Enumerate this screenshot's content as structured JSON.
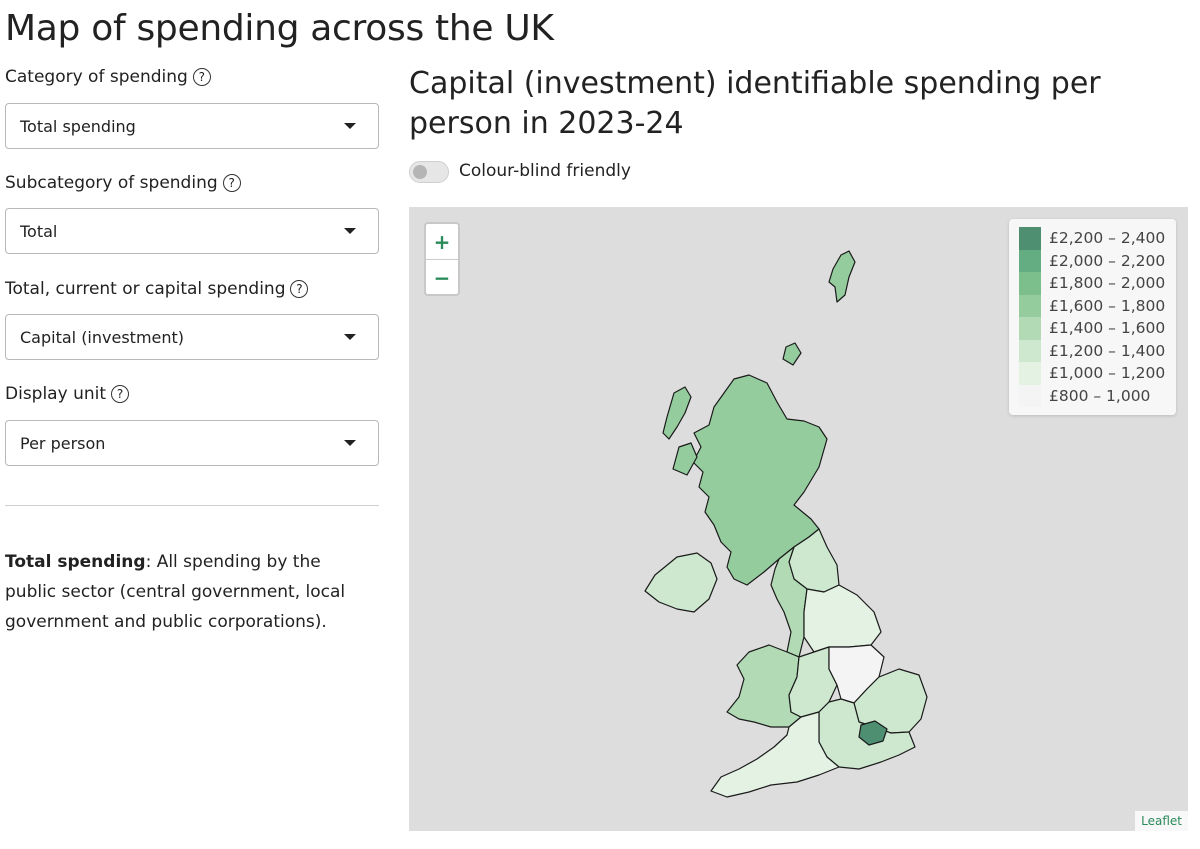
{
  "page_title": "Map of spending across the UK",
  "controls": [
    {
      "label": "Category of spending",
      "value": "Total spending"
    },
    {
      "label": "Subcategory of spending",
      "value": "Total"
    },
    {
      "label": "Total, current or capital spending",
      "value": "Capital (investment)"
    },
    {
      "label": "Display unit",
      "value": "Per person"
    }
  ],
  "description": {
    "term": "Total spending",
    "text": ": All spending by the public sector (central government, local government and public corporations)."
  },
  "chart_title": "Capital (investment) identifiable spending per person in 2023-24",
  "toggle": {
    "label": "Colour-blind friendly",
    "on": false
  },
  "zoom": {
    "in": "+",
    "out": "−"
  },
  "legend": [
    {
      "label": "£2,200 – 2,400",
      "color": "#4e8f72"
    },
    {
      "label": "£2,000 – 2,200",
      "color": "#64ad82"
    },
    {
      "label": "£1,800 – 2,000",
      "color": "#7cbf8d"
    },
    {
      "label": "£1,600 – 1,800",
      "color": "#94cc9e"
    },
    {
      "label": "£1,400 – 1,600",
      "color": "#b2dbb5"
    },
    {
      "label": "£1,200 – 1,400",
      "color": "#cde8cf"
    },
    {
      "label": "£1,000 – 1,200",
      "color": "#e4f2e4"
    },
    {
      "label": "£800 – 1,000",
      "color": "#f4f4f4"
    }
  ],
  "regions": [
    {
      "name": "Scotland",
      "color": "#94cc9e"
    },
    {
      "name": "Northern Ireland",
      "color": "#cde8cf"
    },
    {
      "name": "North East",
      "color": "#cde8cf"
    },
    {
      "name": "North West",
      "color": "#b2dbb5"
    },
    {
      "name": "Yorkshire and the Humber",
      "color": "#e4f2e4"
    },
    {
      "name": "Wales",
      "color": "#b2dbb5"
    },
    {
      "name": "West Midlands",
      "color": "#cde8cf"
    },
    {
      "name": "East Midlands",
      "color": "#f4f4f4"
    },
    {
      "name": "East of England",
      "color": "#cde8cf"
    },
    {
      "name": "London",
      "color": "#4e8f72"
    },
    {
      "name": "South East",
      "color": "#cde8cf"
    },
    {
      "name": "South West",
      "color": "#e4f2e4"
    }
  ],
  "attribution": "Leaflet"
}
